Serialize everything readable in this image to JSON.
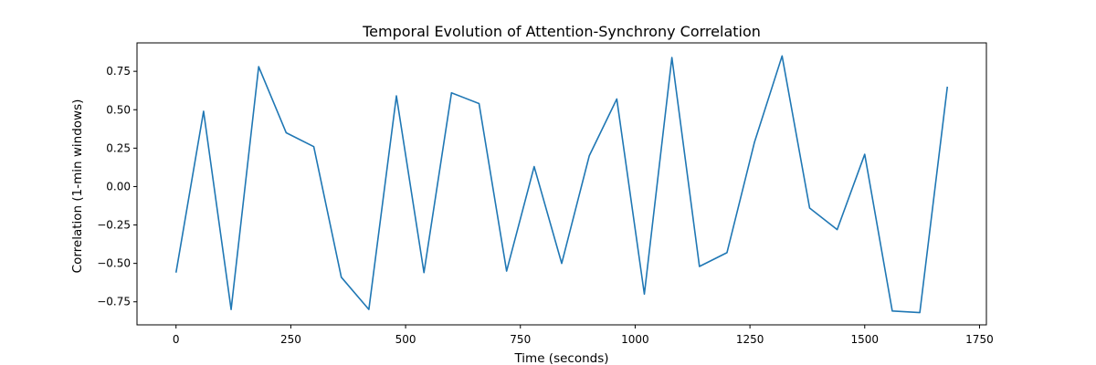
{
  "chart_data": {
    "type": "line",
    "title": "Temporal Evolution of Attention-Synchrony Correlation",
    "xlabel": "Time (seconds)",
    "ylabel": "Correlation (1-min windows)",
    "xlim": [
      -85,
      1765
    ],
    "ylim": [
      -0.9,
      0.935
    ],
    "grid": false,
    "x_ticks": [
      0,
      250,
      500,
      750,
      1000,
      1250,
      1500,
      1750
    ],
    "y_ticks": [
      -0.75,
      -0.5,
      -0.25,
      0.0,
      0.25,
      0.5,
      0.75
    ],
    "x_tick_labels": [
      "0",
      "250",
      "500",
      "750",
      "1000",
      "1250",
      "1500",
      "1750"
    ],
    "y_tick_labels": [
      "−0.75",
      "−0.50",
      "−0.25",
      "0.00",
      "0.25",
      "0.50",
      "0.75"
    ],
    "series": [
      {
        "color": "#1f77b4",
        "x": [
          0,
          60,
          120,
          180,
          240,
          300,
          360,
          420,
          480,
          540,
          600,
          660,
          720,
          780,
          840,
          900,
          960,
          1020,
          1080,
          1140,
          1200,
          1260,
          1320,
          1380,
          1440,
          1500,
          1560,
          1620,
          1680
        ],
        "values": [
          -0.56,
          0.49,
          -0.8,
          0.78,
          0.35,
          0.26,
          -0.59,
          -0.8,
          0.59,
          -0.56,
          0.61,
          0.54,
          -0.55,
          0.13,
          -0.5,
          0.2,
          0.57,
          -0.7,
          0.84,
          -0.52,
          -0.43,
          0.29,
          0.85,
          -0.14,
          -0.28,
          0.21,
          -0.81,
          -0.82,
          0.65
        ]
      }
    ]
  }
}
